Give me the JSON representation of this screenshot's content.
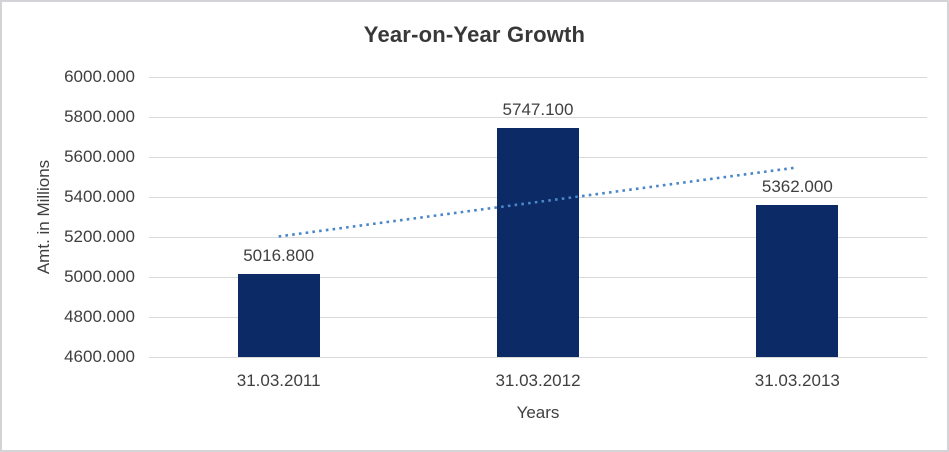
{
  "chart": {
    "title": "Year-on-Year Growth",
    "x_axis_title": "Years",
    "y_axis_title": "Amt. in Millions"
  },
  "chart_data": {
    "type": "bar",
    "title": "Year-on-Year Growth",
    "xlabel": "Years",
    "ylabel": "Amt. in Millions",
    "categories": [
      "31.03.2011",
      "31.03.2012",
      "31.03.2013"
    ],
    "values": [
      5016.8,
      5747.1,
      5362.0
    ],
    "data_labels": [
      "5016.800",
      "5747.100",
      "5362.000"
    ],
    "ylim": [
      4600,
      6000
    ],
    "ytick_step": 200,
    "ytick_labels_top_to_bottom": [
      "6000.000",
      "5800.000",
      "5600.000",
      "5400.000",
      "5200.000",
      "5000.000",
      "4800.000",
      "4600.000"
    ],
    "grid": "horizontal",
    "legend": "none",
    "bar_color": "#0b2a66",
    "trendline": {
      "type": "linear",
      "style": "dotted",
      "color": "#4a86c8"
    },
    "colors": {
      "text": "#3f3f3f",
      "title_text": "#383838",
      "gridline": "#d9d9d9",
      "frame_border": "#d4d4d8",
      "background": "#ffffff"
    }
  }
}
